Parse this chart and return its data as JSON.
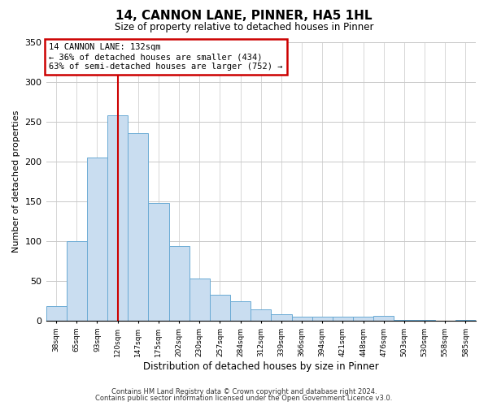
{
  "title": "14, CANNON LANE, PINNER, HA5 1HL",
  "subtitle": "Size of property relative to detached houses in Pinner",
  "xlabel": "Distribution of detached houses by size in Pinner",
  "ylabel": "Number of detached properties",
  "bar_labels": [
    "38sqm",
    "65sqm",
    "93sqm",
    "120sqm",
    "147sqm",
    "175sqm",
    "202sqm",
    "230sqm",
    "257sqm",
    "284sqm",
    "312sqm",
    "339sqm",
    "366sqm",
    "394sqm",
    "421sqm",
    "448sqm",
    "476sqm",
    "503sqm",
    "530sqm",
    "558sqm",
    "585sqm"
  ],
  "bar_values": [
    18,
    100,
    205,
    258,
    235,
    148,
    94,
    53,
    33,
    24,
    14,
    8,
    5,
    5,
    5,
    5,
    6,
    1,
    1,
    0,
    1
  ],
  "bar_color": "#c9ddf0",
  "bar_edge_color": "#6aaad4",
  "property_line_x": 3.5,
  "property_line_color": "#cc0000",
  "annotation_title": "14 CANNON LANE: 132sqm",
  "annotation_line1": "← 36% of detached houses are smaller (434)",
  "annotation_line2": "63% of semi-detached houses are larger (752) →",
  "annotation_box_color": "#ffffff",
  "annotation_box_edge_color": "#cc0000",
  "ylim": [
    0,
    350
  ],
  "yticks": [
    0,
    50,
    100,
    150,
    200,
    250,
    300,
    350
  ],
  "footer1": "Contains HM Land Registry data © Crown copyright and database right 2024.",
  "footer2": "Contains public sector information licensed under the Open Government Licence v3.0.",
  "background_color": "#ffffff",
  "grid_color": "#c8c8c8"
}
